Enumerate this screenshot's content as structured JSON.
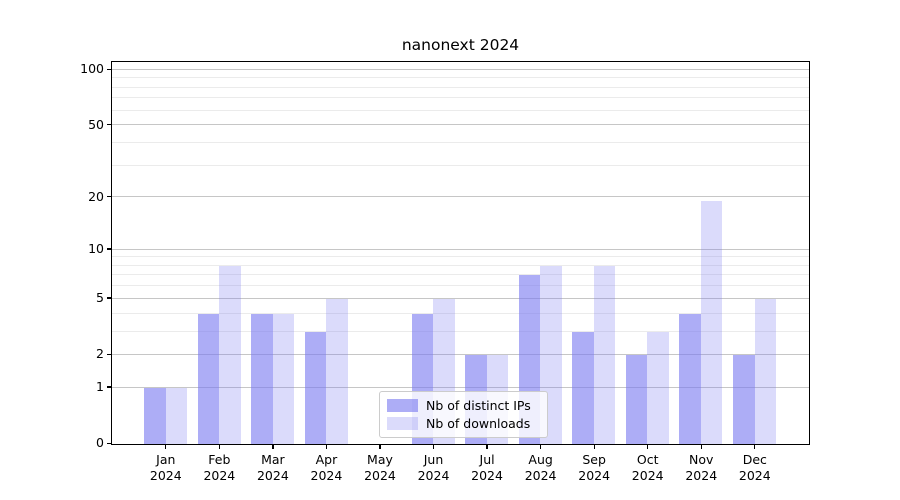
{
  "chart_data": {
    "type": "bar",
    "title": "nanonext 2024",
    "months": [
      "Jan",
      "Feb",
      "Mar",
      "Apr",
      "May",
      "Jun",
      "Jul",
      "Aug",
      "Sep",
      "Oct",
      "Nov",
      "Dec"
    ],
    "x_year_line": "2024",
    "series": [
      {
        "name": "Nb of distinct IPs",
        "color": "rgba(122,122,240,0.62)",
        "values": [
          1,
          4,
          4,
          3,
          0,
          4,
          2,
          7,
          3,
          2,
          4,
          2
        ]
      },
      {
        "name": "Nb of downloads",
        "color": "rgba(122,122,240,0.27)",
        "values": [
          1,
          8,
          4,
          5,
          0,
          5,
          2,
          8,
          8,
          3,
          19,
          5
        ]
      }
    ],
    "yscale": "log1p",
    "ylim": [
      0,
      109
    ],
    "yticks_major": [
      0,
      1,
      2,
      5,
      10,
      20,
      50,
      100
    ],
    "yticks_minor": [
      3,
      4,
      6,
      7,
      8,
      9,
      30,
      40,
      60,
      70,
      80,
      90
    ],
    "grid": true,
    "legend_position": "lower center"
  },
  "colors": {
    "grid_major": "#c6c6c6",
    "grid_minor": "#ebebeb",
    "spine": "#000000",
    "text": "#000000",
    "legend_border": "#cccccc",
    "legend_bg": "rgba(255,255,255,0.8)"
  }
}
